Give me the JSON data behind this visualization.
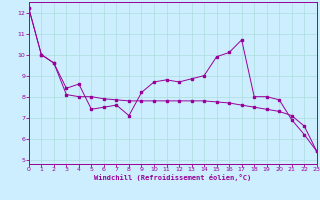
{
  "xlabel": "Windchill (Refroidissement éolien,°C)",
  "background_color": "#cceeff",
  "line_color": "#990099",
  "grid_color": "#aadddd",
  "xlim": [
    0,
    23
  ],
  "ylim": [
    4.8,
    12.5
  ],
  "yticks": [
    5,
    6,
    7,
    8,
    9,
    10,
    11,
    12
  ],
  "xticks": [
    0,
    1,
    2,
    3,
    4,
    5,
    6,
    7,
    8,
    9,
    10,
    11,
    12,
    13,
    14,
    15,
    16,
    17,
    18,
    19,
    20,
    21,
    22,
    23
  ],
  "x": [
    0,
    1,
    2,
    3,
    4,
    5,
    6,
    7,
    8,
    9,
    10,
    11,
    12,
    13,
    14,
    15,
    16,
    17,
    18,
    19,
    20,
    21,
    22,
    23
  ],
  "y_windchill": [
    12.2,
    10.0,
    9.6,
    8.4,
    8.6,
    7.4,
    7.5,
    7.6,
    7.1,
    8.2,
    8.7,
    8.8,
    8.7,
    8.85,
    9.0,
    9.9,
    10.1,
    10.7,
    8.0,
    8.0,
    7.85,
    6.9,
    6.2,
    5.4
  ],
  "y_trend": [
    12.2,
    10.0,
    9.6,
    8.1,
    8.0,
    8.0,
    7.9,
    7.85,
    7.8,
    7.8,
    7.8,
    7.8,
    7.8,
    7.8,
    7.8,
    7.75,
    7.7,
    7.6,
    7.5,
    7.4,
    7.3,
    7.1,
    6.6,
    5.4
  ]
}
